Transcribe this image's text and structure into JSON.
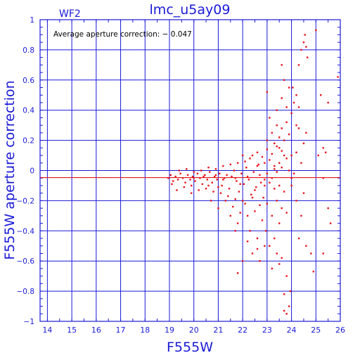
{
  "chart_data": {
    "type": "scatter",
    "title": "lmc_u5ay09",
    "panel_label": "WF2",
    "annotation": "Average aperture correction: − 0.047",
    "xlabel": "F555W",
    "ylabel": "F555W aperture correction",
    "xlim": [
      13.7,
      26.0
    ],
    "ylim": [
      -1.0,
      1.0
    ],
    "x_ticks": [
      "14",
      "15",
      "16",
      "17",
      "18",
      "19",
      "20",
      "21",
      "22",
      "23",
      "24",
      "25",
      "26"
    ],
    "y_ticks": [
      "1",
      "0.8",
      "0.6",
      "0.4",
      "0.2",
      "0",
      "−0.2",
      "−0.4",
      "−0.6",
      "−0.8",
      "−1"
    ],
    "grid": true,
    "reference_line_y": -0.047,
    "series": [
      {
        "points": [
          [
            18.95,
            -0.05
          ],
          [
            19.05,
            -0.03
          ],
          [
            19.15,
            -0.07
          ],
          [
            19.25,
            -0.04
          ],
          [
            19.35,
            -0.06
          ],
          [
            19.45,
            -0.02
          ],
          [
            19.55,
            -0.05
          ],
          [
            19.65,
            -0.08
          ],
          [
            19.75,
            -0.03
          ],
          [
            19.85,
            -0.06
          ],
          [
            19.95,
            -0.04
          ],
          [
            20.05,
            -0.07
          ],
          [
            20.15,
            -0.02
          ],
          [
            20.25,
            -0.05
          ],
          [
            20.35,
            -0.09
          ],
          [
            20.45,
            -0.03
          ],
          [
            20.55,
            -0.06
          ],
          [
            20.65,
            -0.01
          ],
          [
            20.75,
            -0.08
          ],
          [
            20.85,
            -0.04
          ],
          [
            20.95,
            -0.06
          ],
          [
            21.05,
            -0.02
          ],
          [
            21.15,
            -0.1
          ],
          [
            21.25,
            -0.05
          ],
          [
            21.35,
            -0.03
          ],
          [
            21.45,
            -0.12
          ],
          [
            21.55,
            -0.04
          ],
          [
            21.65,
            0.0
          ],
          [
            21.75,
            -0.07
          ],
          [
            21.85,
            -0.14
          ],
          [
            21.95,
            -0.02
          ],
          [
            22.05,
            -0.09
          ],
          [
            22.15,
            0.02
          ],
          [
            22.25,
            -0.06
          ],
          [
            22.35,
            -0.16
          ],
          [
            22.45,
            -0.01
          ],
          [
            22.55,
            -0.11
          ],
          [
            22.65,
            0.04
          ],
          [
            22.75,
            -0.08
          ],
          [
            22.85,
            -0.18
          ],
          [
            19.3,
            -0.13
          ],
          [
            19.6,
            -0.11
          ],
          [
            19.9,
            -0.1
          ],
          [
            20.2,
            -0.13
          ],
          [
            20.5,
            -0.12
          ],
          [
            20.8,
            -0.14
          ],
          [
            21.1,
            -0.15
          ],
          [
            21.4,
            -0.17
          ],
          [
            21.7,
            -0.19
          ],
          [
            22.0,
            -0.2
          ],
          [
            19.4,
            0.0
          ],
          [
            19.7,
            0.01
          ],
          [
            20.0,
            -0.01
          ],
          [
            20.3,
            0.0
          ],
          [
            20.6,
            0.02
          ],
          [
            20.9,
            0.01
          ],
          [
            21.2,
            0.03
          ],
          [
            21.5,
            0.04
          ],
          [
            21.8,
            0.05
          ],
          [
            22.1,
            0.06
          ],
          [
            21.3,
            -0.2
          ],
          [
            21.6,
            -0.24
          ],
          [
            21.9,
            -0.28
          ],
          [
            22.2,
            -0.3
          ],
          [
            22.5,
            -0.27
          ],
          [
            22.8,
            -0.33
          ],
          [
            21.8,
            -0.35
          ],
          [
            22.3,
            -0.4
          ],
          [
            22.6,
            -0.45
          ],
          [
            22.9,
            -0.5
          ],
          [
            22.4,
            -0.55
          ],
          [
            22.7,
            -0.6
          ],
          [
            22.95,
            -0.4
          ],
          [
            22.2,
            -0.47
          ],
          [
            21.8,
            -0.68
          ],
          [
            23.2,
            -0.65
          ],
          [
            22.0,
            -0.6
          ],
          [
            21.5,
            -0.3
          ],
          [
            21.0,
            -0.25
          ],
          [
            20.7,
            -0.2
          ],
          [
            22.4,
            0.1
          ],
          [
            22.6,
            0.12
          ],
          [
            22.8,
            0.09
          ],
          [
            23.0,
            0.14
          ],
          [
            23.2,
            0.11
          ],
          [
            23.4,
            0.16
          ],
          [
            23.6,
            0.13
          ],
          [
            22.9,
            0.05
          ],
          [
            23.1,
            0.07
          ],
          [
            23.3,
            0.03
          ],
          [
            23.1,
            -0.08
          ],
          [
            23.3,
            -0.12
          ],
          [
            23.5,
            -0.1
          ],
          [
            23.7,
            -0.14
          ],
          [
            23.4,
            -0.2
          ],
          [
            23.6,
            -0.25
          ],
          [
            23.2,
            -0.3
          ],
          [
            23.5,
            -0.35
          ],
          [
            23.8,
            -0.28
          ],
          [
            23.3,
            -0.45
          ],
          [
            23.0,
            0.2
          ],
          [
            23.2,
            0.25
          ],
          [
            23.4,
            0.3
          ],
          [
            23.5,
            0.22
          ],
          [
            23.6,
            0.28
          ],
          [
            23.7,
            0.2
          ],
          [
            23.8,
            0.32
          ],
          [
            23.9,
            0.24
          ],
          [
            23.3,
            0.18
          ],
          [
            23.5,
            0.15
          ],
          [
            23.4,
            0.4
          ],
          [
            23.6,
            0.48
          ],
          [
            23.8,
            0.42
          ],
          [
            23.1,
            0.35
          ],
          [
            23.0,
            0.52
          ],
          [
            23.9,
            0.55
          ],
          [
            24.0,
            0.38
          ],
          [
            24.1,
            0.45
          ],
          [
            23.7,
            0.6
          ],
          [
            24.2,
            0.5
          ],
          [
            24.05,
            0.55
          ],
          [
            24.2,
            0.3
          ],
          [
            24.3,
            0.42
          ],
          [
            24.5,
            0.18
          ],
          [
            24.2,
            0.12
          ],
          [
            24.0,
            0.1
          ],
          [
            24.4,
            0.05
          ],
          [
            24.6,
            0.25
          ],
          [
            24.3,
            0.28
          ],
          [
            24.1,
            -0.02
          ],
          [
            24.3,
            0.7
          ],
          [
            24.4,
            0.8
          ],
          [
            24.5,
            0.85
          ],
          [
            24.55,
            0.9
          ],
          [
            24.65,
            0.75
          ],
          [
            24.6,
            0.82
          ],
          [
            25.0,
            0.93
          ],
          [
            25.2,
            0.5
          ],
          [
            25.5,
            0.45
          ],
          [
            25.1,
            0.1
          ],
          [
            25.3,
            0.15
          ],
          [
            25.4,
            0.12
          ],
          [
            25.3,
            -0.05
          ],
          [
            24.5,
            -0.15
          ],
          [
            24.4,
            -0.3
          ],
          [
            24.3,
            -0.45
          ],
          [
            24.6,
            -0.5
          ],
          [
            24.8,
            -0.55
          ],
          [
            24.9,
            -0.67
          ],
          [
            25.3,
            -0.55
          ],
          [
            25.6,
            -0.35
          ],
          [
            25.5,
            -0.25
          ],
          [
            25.9,
            0.62
          ],
          [
            23.6,
            0.7
          ],
          [
            24.2,
            -0.2
          ],
          [
            24.0,
            -0.05
          ],
          [
            23.9,
            0.0
          ],
          [
            24.0,
            -0.1
          ],
          [
            23.8,
            -0.7
          ],
          [
            23.6,
            -0.58
          ],
          [
            23.7,
            -0.82
          ],
          [
            23.9,
            -0.9
          ],
          [
            23.95,
            -0.8
          ],
          [
            23.7,
            -0.93
          ],
          [
            23.8,
            -0.95
          ],
          [
            23.5,
            -0.62
          ],
          [
            23.4,
            -0.55
          ],
          [
            23.1,
            -0.5
          ],
          [
            22.6,
            -0.52
          ],
          [
            21.7,
            -0.4
          ],
          [
            20.0,
            -0.05
          ],
          [
            20.4,
            -0.04
          ],
          [
            20.9,
            -0.03
          ],
          [
            21.2,
            -0.06
          ],
          [
            21.7,
            -0.05
          ],
          [
            22.2,
            -0.04
          ],
          [
            22.7,
            -0.03
          ],
          [
            23.0,
            -0.02
          ],
          [
            23.4,
            -0.01
          ],
          [
            23.6,
            0.02
          ],
          [
            19.1,
            -0.09
          ],
          [
            19.9,
            -0.15
          ],
          [
            20.6,
            -0.1
          ],
          [
            21.0,
            -0.11
          ],
          [
            21.9,
            -0.09
          ],
          [
            22.5,
            -0.13
          ],
          [
            22.9,
            -0.1
          ],
          [
            23.2,
            -0.05
          ],
          [
            23.5,
            0.05
          ],
          [
            23.8,
            0.08
          ],
          [
            22.1,
            -0.22
          ],
          [
            22.4,
            -0.18
          ],
          [
            22.7,
            -0.23
          ],
          [
            23.0,
            -0.22
          ],
          [
            22.0,
            0.1
          ],
          [
            22.3,
            0.08
          ],
          [
            22.6,
            0.03
          ],
          [
            22.9,
            -0.06
          ],
          [
            23.3,
            0.01
          ],
          [
            23.7,
            0.1
          ]
        ]
      }
    ]
  }
}
